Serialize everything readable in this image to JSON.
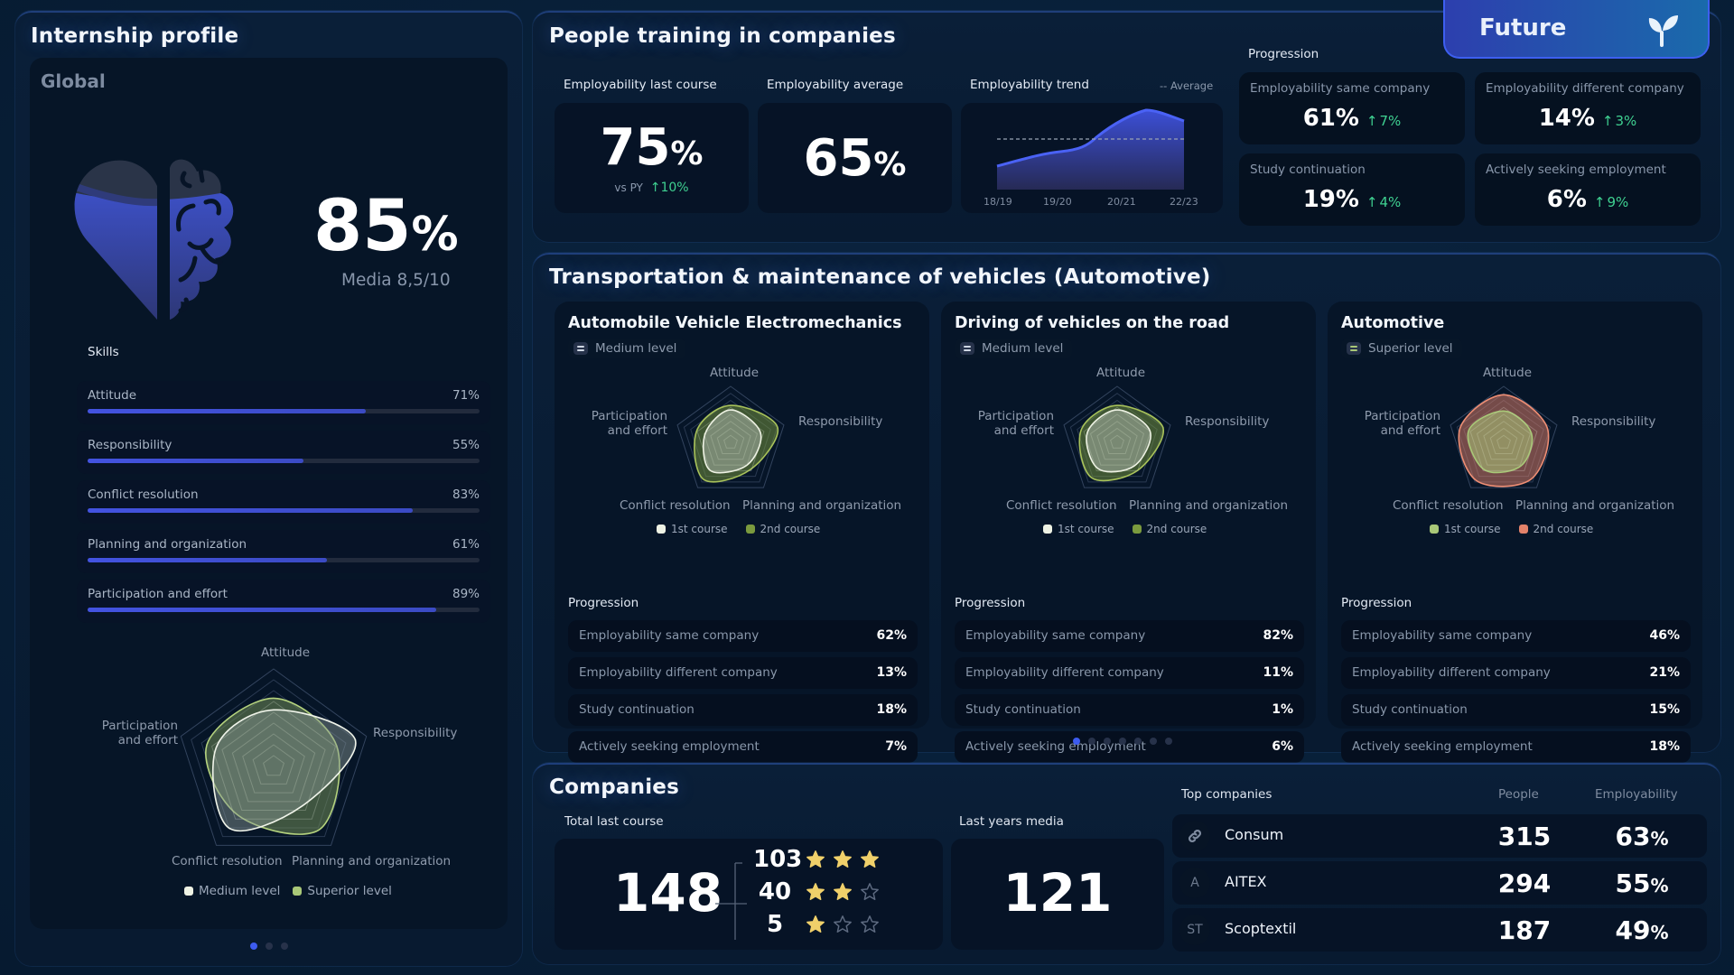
{
  "colors": {
    "accent": "#3d5cf0",
    "positive": "#3fd191",
    "medium_level": "#eef2e4",
    "superior_level": "#a9c878",
    "second_course_green": "#7a9a3e",
    "second_course_red": "#e3826a",
    "star": "#f0d06a"
  },
  "internship": {
    "title": "Internship profile",
    "subtitle": "Global",
    "icon": "heart-brain-icon",
    "score": "85",
    "score_unit": "%",
    "score_fill_pct": 85,
    "media": "Media 8,5/10",
    "skills_title": "Skills",
    "skills": [
      {
        "label": "Attitude",
        "value": "71%",
        "pct": 71
      },
      {
        "label": "Responsibility",
        "value": "55%",
        "pct": 55
      },
      {
        "label": "Conflict resolution",
        "value": "83%",
        "pct": 83
      },
      {
        "label": "Planning and organization",
        "value": "61%",
        "pct": 61
      },
      {
        "label": "Participation and effort",
        "value": "89%",
        "pct": 89
      }
    ],
    "radar": {
      "axes": [
        "Attitude",
        "Responsibility",
        "Planning and organization",
        "Conflict resolution",
        "Participation and effort"
      ],
      "axis_labels": {
        "attitude": "Attitude",
        "responsibility": "Responsibility",
        "planning": "Planning and organization",
        "conflict": "Conflict resolution",
        "participation_1": "Participation",
        "participation_2": "and effort"
      },
      "series": [
        {
          "name": "Medium level",
          "values": [
            58,
            88,
            50,
            78,
            62
          ]
        },
        {
          "name": "Superior level",
          "values": [
            70,
            68,
            80,
            62,
            72
          ]
        }
      ]
    },
    "pager": {
      "count": 3,
      "active": 0
    }
  },
  "training": {
    "title": "People training in companies",
    "last_course": {
      "label": "Employability last course",
      "value": "75",
      "unit": "%",
      "vs_label": "vs PY",
      "delta": "10%"
    },
    "average": {
      "label": "Employability average",
      "value": "65",
      "unit": "%"
    },
    "trend": {
      "label": "Employability trend",
      "legend": "-- Average",
      "ticks": [
        "18/19",
        "19/20",
        "20/21",
        "22/23"
      ]
    },
    "progression_title": "Progression",
    "progression": [
      {
        "label": "Employability same company",
        "value": "61%",
        "delta": "7%"
      },
      {
        "label": "Employability different company",
        "value": "14%",
        "delta": "3%"
      },
      {
        "label": "Study continuation",
        "value": "19%",
        "delta": "4%"
      },
      {
        "label": "Actively seeking employment",
        "value": "6%",
        "delta": "9%"
      }
    ]
  },
  "future_tab": {
    "label": "Future",
    "icon": "sprout-icon"
  },
  "transport": {
    "title": "Transportation & maintenance of vehicles (Automotive)",
    "courses": [
      {
        "title": "Automobile Vehicle Electromechanics",
        "level": "Medium level",
        "legend": [
          "1st course",
          "2nd course"
        ],
        "radar": {
          "first": [
            58,
            56,
            50,
            62,
            48
          ],
          "second": [
            66,
            88,
            60,
            82,
            64
          ]
        },
        "progression": [
          {
            "label": "Employability same company",
            "value": "62%"
          },
          {
            "label": "Employability different company",
            "value": "13%"
          },
          {
            "label": "Study continuation",
            "value": "18%"
          },
          {
            "label": "Actively seeking employment",
            "value": "7%"
          }
        ]
      },
      {
        "title": "Driving of vehicles on the road",
        "level": "Medium level",
        "legend": [
          "1st course",
          "2nd course"
        ],
        "radar": {
          "first": [
            58,
            62,
            52,
            58,
            56
          ],
          "second": [
            66,
            86,
            62,
            78,
            68
          ]
        },
        "progression": [
          {
            "label": "Employability same company",
            "value": "82%"
          },
          {
            "label": "Employability different company",
            "value": "11%"
          },
          {
            "label": "Study continuation",
            "value": "1%"
          },
          {
            "label": "Actively seeking employment",
            "value": "6%"
          }
        ]
      },
      {
        "title": "Automotive",
        "level": "Superior level",
        "legend": [
          "1st course",
          "2nd course"
        ],
        "radar": {
          "first": [
            56,
            52,
            52,
            60,
            66
          ],
          "second": [
            85,
            82,
            82,
            84,
            82
          ]
        },
        "progression": [
          {
            "label": "Employability same company",
            "value": "46%"
          },
          {
            "label": "Employability different company",
            "value": "21%"
          },
          {
            "label": "Study continuation",
            "value": "15%"
          },
          {
            "label": "Actively seeking employment",
            "value": "18%"
          }
        ]
      }
    ],
    "radar_labels": {
      "attitude": "Attitude",
      "responsibility": "Responsibility",
      "planning": "Planning and organization",
      "conflict": "Conflict resolution",
      "participation_1": "Participation",
      "participation_2": "and effort"
    },
    "pager": {
      "count": 7,
      "active": 0
    }
  },
  "companies": {
    "title": "Companies",
    "total_label": "Total last course",
    "total": "148",
    "breakdown": [
      {
        "count": "103",
        "stars": 3
      },
      {
        "count": "40",
        "stars": 2
      },
      {
        "count": "5",
        "stars": 1
      }
    ],
    "last_years_label": "Last years media",
    "last_years_value": "121",
    "top": {
      "title": "Top companies",
      "col_people": "People",
      "col_employability": "Employability",
      "rows": [
        {
          "avatar": "link-icon",
          "avatar_text": "",
          "name": "Consum",
          "people": "315",
          "employability": "63",
          "unit": "%"
        },
        {
          "avatar": "initials",
          "avatar_text": "A",
          "name": "AITEX",
          "people": "294",
          "employability": "55",
          "unit": "%"
        },
        {
          "avatar": "initials",
          "avatar_text": "ST",
          "name": "Scoptextil",
          "people": "187",
          "employability": "49",
          "unit": "%"
        }
      ]
    }
  }
}
